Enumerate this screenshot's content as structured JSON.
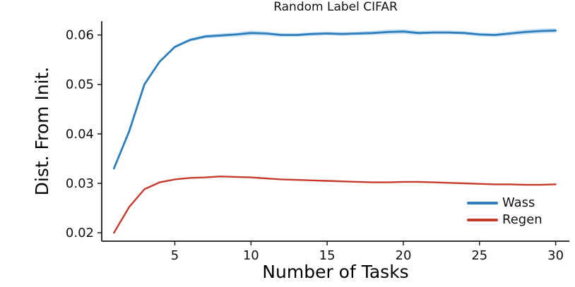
{
  "title": "Random Label CIFAR",
  "chart_data": {
    "type": "line",
    "title": "Random Label CIFAR",
    "xlabel": "Number of Tasks",
    "ylabel": "Dist. From Init.",
    "x": [
      1,
      2,
      3,
      4,
      5,
      6,
      7,
      8,
      9,
      10,
      11,
      12,
      13,
      14,
      15,
      16,
      17,
      18,
      19,
      20,
      21,
      22,
      23,
      24,
      25,
      26,
      27,
      28,
      29,
      30
    ],
    "series": [
      {
        "name": "Wass",
        "color": "#2e7ebc",
        "band_color": "#8fc0e4",
        "values": [
          0.033,
          0.0405,
          0.05,
          0.0546,
          0.0576,
          0.059,
          0.0597,
          0.0599,
          0.0601,
          0.0604,
          0.0603,
          0.06,
          0.06,
          0.0602,
          0.0603,
          0.0602,
          0.0603,
          0.0604,
          0.0606,
          0.0607,
          0.0604,
          0.0605,
          0.0605,
          0.0604,
          0.0601,
          0.06,
          0.0603,
          0.0606,
          0.0608,
          0.0609
        ],
        "band": [
          0.0001,
          0.0001,
          0.00015,
          0.0002,
          0.0003,
          0.00035,
          0.0004,
          0.0004,
          0.00045,
          0.0005,
          0.00045,
          0.0004,
          0.0004,
          0.0004,
          0.0004,
          0.0004,
          0.0004,
          0.00045,
          0.0005,
          0.0005,
          0.00045,
          0.0004,
          0.0004,
          0.0004,
          0.0004,
          0.0004,
          0.00045,
          0.0005,
          0.0005,
          0.0005
        ]
      },
      {
        "name": "Regen",
        "color": "#c53a2d",
        "band_color": "#e2968e",
        "values": [
          0.02,
          0.0252,
          0.0288,
          0.0302,
          0.0308,
          0.0311,
          0.0312,
          0.0314,
          0.0313,
          0.0312,
          0.031,
          0.0308,
          0.0307,
          0.0306,
          0.0305,
          0.0304,
          0.0303,
          0.0302,
          0.0302,
          0.0303,
          0.0303,
          0.0302,
          0.0301,
          0.03,
          0.0299,
          0.0298,
          0.0298,
          0.0297,
          0.0297,
          0.0298
        ],
        "band": [
          0.00012,
          0.00012,
          0.00012,
          0.00012,
          0.00012,
          0.00012,
          0.00012,
          0.00012,
          0.00012,
          0.00012,
          0.00012,
          0.00012,
          0.00012,
          0.00012,
          0.00012,
          0.00012,
          0.00012,
          0.00012,
          0.00012,
          0.00012,
          0.00012,
          0.00012,
          0.00012,
          0.00012,
          0.00012,
          0.00012,
          0.00012,
          0.00012,
          0.00012,
          0.00012
        ]
      }
    ],
    "xticks": [
      5,
      10,
      15,
      20,
      25,
      30
    ],
    "xtick_labels": [
      "5",
      "10",
      "15",
      "20",
      "25",
      "30"
    ],
    "yticks": [
      0.02,
      0.03,
      0.04,
      0.05,
      0.06
    ],
    "ytick_labels": [
      "0.02",
      "0.03",
      "0.04",
      "0.05",
      "0.06"
    ],
    "xlim": [
      0.2,
      30.9
    ],
    "ylim": [
      0.0183,
      0.0628
    ],
    "grid": false,
    "legend_position": "lower right"
  },
  "legend": {
    "items": [
      {
        "label": "Wass",
        "color": "#2e7ebc"
      },
      {
        "label": "Regen",
        "color": "#c53a2d"
      }
    ]
  },
  "colors": {
    "axis": "#1a1a1a",
    "tick_text": "#111111",
    "background": "#ffffff"
  }
}
